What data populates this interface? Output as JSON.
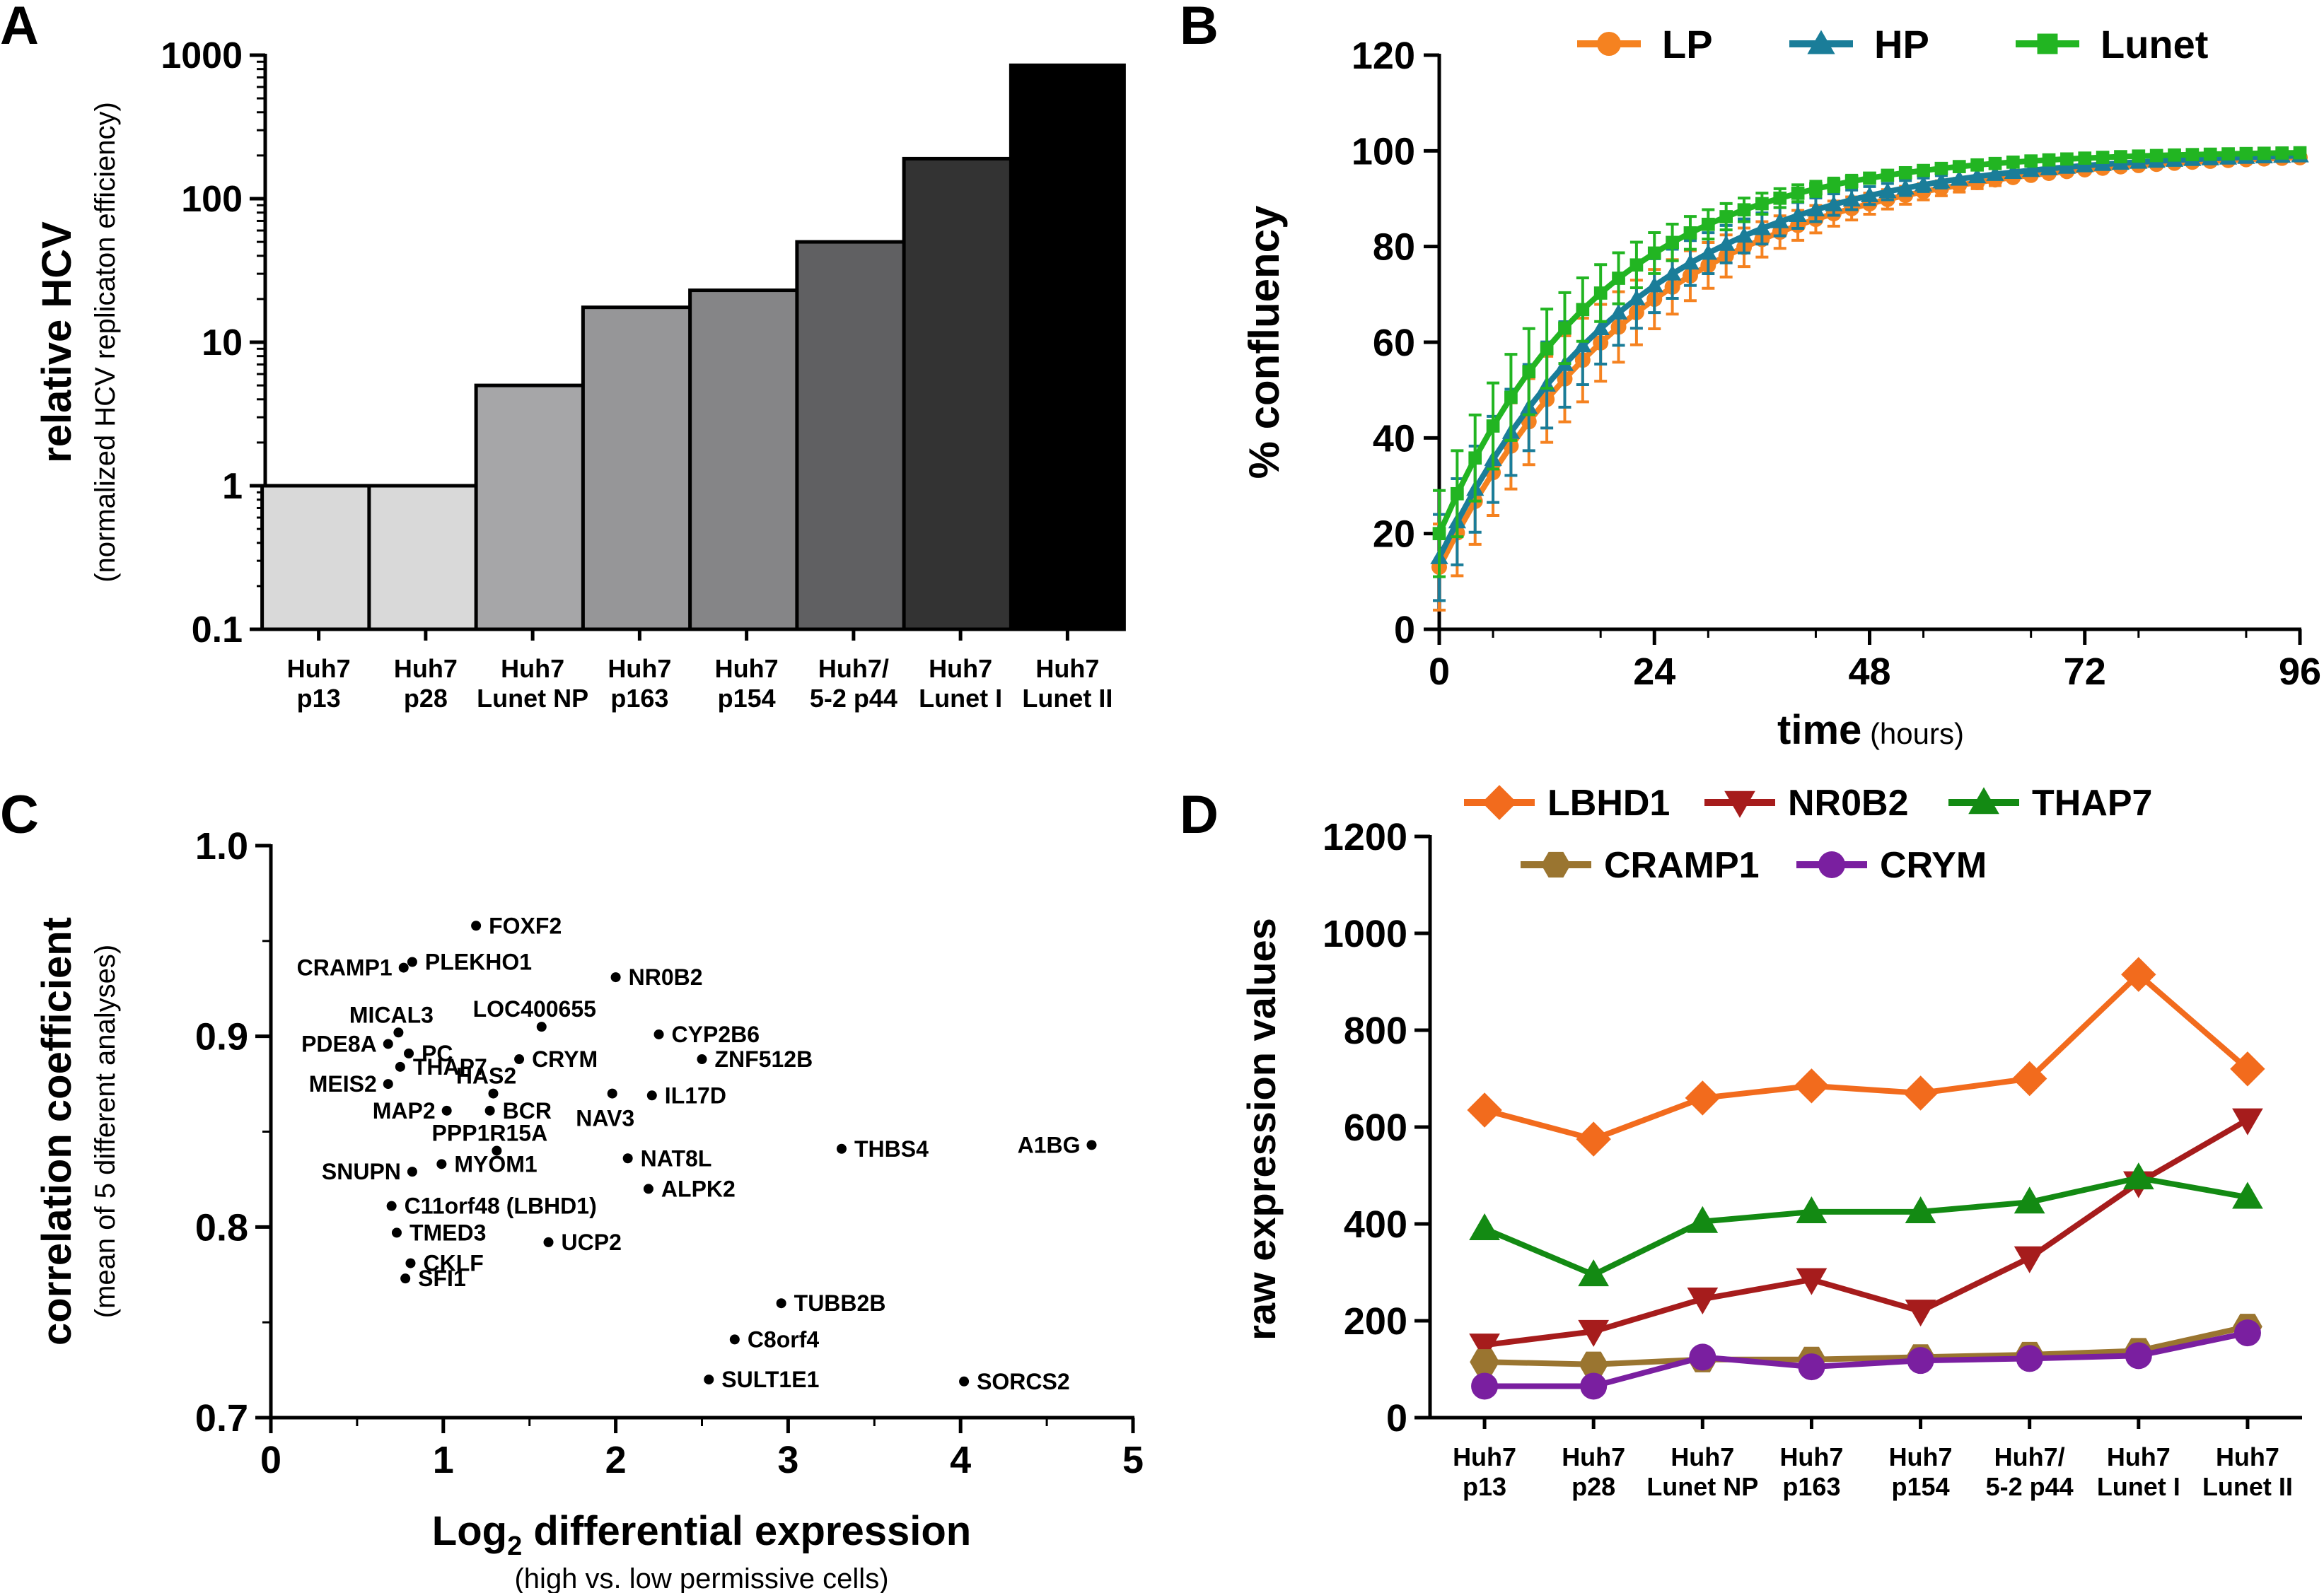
{
  "chart_data": [
    {
      "panel": "A",
      "type": "bar",
      "yscale": "log",
      "ylabel": "relative HCV",
      "ylabel_sub": "(normalized HCV replicaton efficiency)",
      "ylim": [
        0.1,
        1000
      ],
      "yticks": [
        "0.1",
        "1",
        "10",
        "100",
        "1000"
      ],
      "categories": [
        [
          "Huh7",
          "p13"
        ],
        [
          "Huh7",
          "p28"
        ],
        [
          "Huh7",
          "Lunet NP"
        ],
        [
          "Huh7",
          "p163"
        ],
        [
          "Huh7",
          "p154"
        ],
        [
          "Huh7/",
          "5-2 p44"
        ],
        [
          "Huh7",
          "Lunet I"
        ],
        [
          "Huh7",
          "Lunet II"
        ]
      ],
      "values": [
        1,
        1,
        5,
        17.5,
        23,
        50,
        190,
        850
      ],
      "colors": [
        "#d9d9d9",
        "#d9d9d9",
        "#a6a6a8",
        "#969698",
        "#858587",
        "#606062",
        "#333333",
        "#000000"
      ]
    },
    {
      "panel": "B",
      "type": "line",
      "xlabel": "time",
      "xlabel_sub": "(hours)",
      "ylabel": "% confluency",
      "xlim": [
        0,
        96
      ],
      "ylim": [
        0,
        120
      ],
      "xticks": [
        "0",
        "24",
        "48",
        "72",
        "96"
      ],
      "yticks": [
        "0",
        "20",
        "40",
        "60",
        "80",
        "100",
        "120"
      ],
      "series": [
        {
          "name": "LP",
          "color": "#f58220",
          "marker": "circle",
          "rate": 0.043,
          "start": 13
        },
        {
          "name": "HP",
          "color": "#1a7d99",
          "marker": "triangle",
          "rate": 0.046,
          "start": 15
        },
        {
          "name": "Lunet",
          "color": "#22b522",
          "marker": "square",
          "rate": 0.055,
          "start": 20
        }
      ],
      "points_x": [
        0,
        2,
        4,
        6,
        8,
        10,
        12,
        14,
        16,
        18,
        20,
        22,
        24,
        26,
        28,
        30,
        32,
        34,
        36,
        38,
        40,
        42,
        44,
        46,
        48,
        50,
        52,
        54,
        56,
        58,
        60,
        62,
        64,
        66,
        68,
        70,
        72,
        74,
        76,
        78,
        80,
        82,
        84,
        86,
        88,
        90,
        92,
        94,
        96
      ]
    },
    {
      "panel": "C",
      "type": "scatter",
      "xlabel": "Log",
      "xlabel_subscript": "2",
      "xlabel_rest": " differential expression",
      "xlabel_sub": "(high vs. low permissive cells)",
      "ylabel": "correlation coefficient",
      "ylabel_sub": "(mean of 5 different analyses)",
      "xlim": [
        0,
        5
      ],
      "ylim": [
        0.7,
        1.0
      ],
      "xticks": [
        "0",
        "1",
        "2",
        "3",
        "4",
        "5"
      ],
      "yticks": [
        "0.7",
        "0.8",
        "0.9",
        "1.0"
      ],
      "points": [
        {
          "x": 1.19,
          "y": 0.958,
          "label": "FOXF2",
          "side": "right"
        },
        {
          "x": 0.82,
          "y": 0.939,
          "label": "PLEKHO1",
          "side": "right"
        },
        {
          "x": 0.77,
          "y": 0.936,
          "label": "CRAMP1",
          "side": "left"
        },
        {
          "x": 2.0,
          "y": 0.931,
          "label": "NR0B2",
          "side": "right"
        },
        {
          "x": 1.57,
          "y": 0.905,
          "label": "LOC400655",
          "side": "above"
        },
        {
          "x": 2.25,
          "y": 0.901,
          "label": "CYP2B6",
          "side": "right"
        },
        {
          "x": 0.74,
          "y": 0.902,
          "label": "MICAL3",
          "side": "above"
        },
        {
          "x": 0.68,
          "y": 0.896,
          "label": "PDE8A",
          "side": "left"
        },
        {
          "x": 0.8,
          "y": 0.891,
          "label": "PC",
          "side": "right"
        },
        {
          "x": 1.44,
          "y": 0.888,
          "label": "CRYM",
          "side": "right"
        },
        {
          "x": 2.5,
          "y": 0.888,
          "label": "ZNF512B",
          "side": "right"
        },
        {
          "x": 0.75,
          "y": 0.884,
          "label": "THAP7",
          "side": "right"
        },
        {
          "x": 0.68,
          "y": 0.875,
          "label": "MEIS2",
          "side": "left"
        },
        {
          "x": 1.29,
          "y": 0.87,
          "label": "HAS2",
          "side": "above"
        },
        {
          "x": 1.98,
          "y": 0.87,
          "label": "NAV3",
          "side": "below"
        },
        {
          "x": 2.21,
          "y": 0.869,
          "label": "IL17D",
          "side": "right"
        },
        {
          "x": 1.02,
          "y": 0.861,
          "label": "MAP2",
          "side": "left"
        },
        {
          "x": 1.27,
          "y": 0.861,
          "label": "BCR",
          "side": "right"
        },
        {
          "x": 1.31,
          "y": 0.84,
          "label": "PPP1R15A",
          "side": "above"
        },
        {
          "x": 3.31,
          "y": 0.841,
          "label": "THBS4",
          "side": "right"
        },
        {
          "x": 4.76,
          "y": 0.843,
          "label": "A1BG",
          "side": "left"
        },
        {
          "x": 2.07,
          "y": 0.836,
          "label": "NAT8L",
          "side": "right"
        },
        {
          "x": 0.99,
          "y": 0.833,
          "label": "MYOM1",
          "side": "right"
        },
        {
          "x": 0.82,
          "y": 0.829,
          "label": "SNUPN",
          "side": "left"
        },
        {
          "x": 2.19,
          "y": 0.82,
          "label": "ALPK2",
          "side": "right"
        },
        {
          "x": 0.7,
          "y": 0.811,
          "label": "C11orf48 (LBHD1)",
          "side": "right"
        },
        {
          "x": 0.73,
          "y": 0.797,
          "label": "TMED3",
          "side": "right"
        },
        {
          "x": 1.61,
          "y": 0.792,
          "label": "UCP2",
          "side": "right"
        },
        {
          "x": 0.81,
          "y": 0.781,
          "label": "CKLF",
          "side": "right"
        },
        {
          "x": 0.78,
          "y": 0.773,
          "label": "SFI1",
          "side": "right"
        },
        {
          "x": 2.96,
          "y": 0.76,
          "label": "TUBB2B",
          "side": "right"
        },
        {
          "x": 2.69,
          "y": 0.741,
          "label": "C8orf4",
          "side": "right"
        },
        {
          "x": 2.54,
          "y": 0.72,
          "label": "SULT1E1",
          "side": "right"
        },
        {
          "x": 4.02,
          "y": 0.719,
          "label": "SORCS2",
          "side": "right"
        }
      ]
    },
    {
      "panel": "D",
      "type": "line",
      "ylabel": "raw expression values",
      "ylim": [
        0,
        1200
      ],
      "yticks": [
        "0",
        "200",
        "400",
        "600",
        "800",
        "1000",
        "1200"
      ],
      "categories": [
        [
          "Huh7",
          "p13"
        ],
        [
          "Huh7",
          "p28"
        ],
        [
          "Huh7",
          "Lunet NP"
        ],
        [
          "Huh7",
          "p163"
        ],
        [
          "Huh7",
          "p154"
        ],
        [
          "Huh7/",
          "5-2 p44"
        ],
        [
          "Huh7",
          "Lunet I"
        ],
        [
          "Huh7",
          "Lunet II"
        ]
      ],
      "series": [
        {
          "name": "LBHD1",
          "color": "#f26b1d",
          "marker": "diamond",
          "values": [
            635,
            575,
            660,
            685,
            670,
            700,
            915,
            720
          ]
        },
        {
          "name": "NR0B2",
          "color": "#a61c1c",
          "marker": "triangle-down",
          "values": [
            150,
            178,
            245,
            285,
            220,
            330,
            485,
            615
          ]
        },
        {
          "name": "THAP7",
          "color": "#138a13",
          "marker": "triangle",
          "values": [
            390,
            295,
            405,
            425,
            425,
            445,
            495,
            455
          ]
        },
        {
          "name": "CRAMP1",
          "color": "#9a7530",
          "marker": "hexagon",
          "values": [
            115,
            110,
            120,
            120,
            125,
            130,
            138,
            188
          ]
        },
        {
          "name": "CRYM",
          "color": "#7a1fa0",
          "marker": "circle",
          "values": [
            65,
            65,
            125,
            105,
            118,
            122,
            128,
            175
          ]
        }
      ]
    }
  ],
  "panel_letters": {
    "a": "A",
    "b": "B",
    "c": "C",
    "d": "D"
  }
}
